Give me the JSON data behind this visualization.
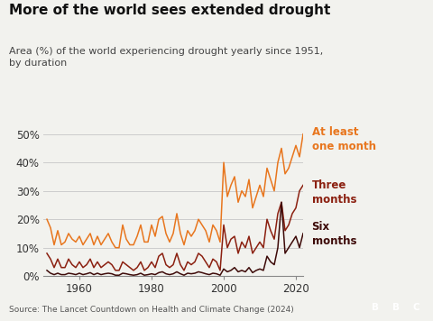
{
  "title": "More of the world sees extended drought",
  "subtitle": "Area (%) of the world experiencing drought yearly since 1951,\nby duration",
  "source": "Source: The Lancet Countdown on Health and Climate Change (2024)",
  "colors": {
    "one_month": "#E8761E",
    "three_months": "#8B2010",
    "six_months": "#3D0A08"
  },
  "years": [
    1951,
    1952,
    1953,
    1954,
    1955,
    1956,
    1957,
    1958,
    1959,
    1960,
    1961,
    1962,
    1963,
    1964,
    1965,
    1966,
    1967,
    1968,
    1969,
    1970,
    1971,
    1972,
    1973,
    1974,
    1975,
    1976,
    1977,
    1978,
    1979,
    1980,
    1981,
    1982,
    1983,
    1984,
    1985,
    1986,
    1987,
    1988,
    1989,
    1990,
    1991,
    1992,
    1993,
    1994,
    1995,
    1996,
    1997,
    1998,
    1999,
    2000,
    2001,
    2002,
    2003,
    2004,
    2005,
    2006,
    2007,
    2008,
    2009,
    2010,
    2011,
    2012,
    2013,
    2014,
    2015,
    2016,
    2017,
    2018,
    2019,
    2020,
    2021,
    2022
  ],
  "one_month": [
    20,
    17,
    11,
    16,
    11,
    12,
    15,
    13,
    12,
    14,
    11,
    13,
    15,
    11,
    14,
    11,
    13,
    15,
    12,
    10,
    10,
    18,
    13,
    11,
    11,
    14,
    18,
    12,
    12,
    18,
    14,
    20,
    21,
    15,
    12,
    15,
    22,
    15,
    11,
    16,
    14,
    16,
    20,
    18,
    16,
    12,
    18,
    16,
    12,
    40,
    28,
    32,
    35,
    26,
    30,
    28,
    34,
    24,
    28,
    32,
    28,
    38,
    34,
    30,
    40,
    45,
    36,
    38,
    42,
    46,
    42,
    50
  ],
  "three_months": [
    8,
    6,
    3,
    6,
    3,
    3,
    6,
    4,
    3,
    5,
    3,
    4,
    6,
    3,
    5,
    3,
    4,
    5,
    4,
    2,
    2,
    5,
    4,
    3,
    2,
    3,
    5,
    2,
    3,
    5,
    3,
    7,
    8,
    4,
    3,
    4,
    8,
    4,
    2,
    5,
    4,
    5,
    8,
    7,
    5,
    3,
    6,
    5,
    2,
    18,
    10,
    13,
    14,
    8,
    12,
    10,
    14,
    8,
    10,
    12,
    10,
    20,
    16,
    13,
    22,
    26,
    16,
    18,
    22,
    24,
    30,
    32
  ],
  "six_months": [
    2,
    1,
    0.5,
    1,
    0.5,
    0.5,
    1,
    0.8,
    0.5,
    1,
    0.5,
    0.8,
    1.2,
    0.5,
    1,
    0.5,
    0.8,
    1,
    0.8,
    0.3,
    0.3,
    1,
    0.8,
    0.5,
    0.3,
    0.5,
    1,
    0.3,
    0.5,
    0.8,
    0.5,
    1.2,
    1.5,
    0.8,
    0.5,
    0.8,
    1.5,
    0.8,
    0.3,
    1,
    0.8,
    1,
    1.5,
    1.2,
    0.8,
    0.5,
    1,
    0.8,
    0.3,
    2.5,
    1.5,
    2,
    3,
    1.5,
    2,
    1.5,
    3,
    1.2,
    2,
    2.5,
    2,
    7,
    5,
    4,
    10,
    26,
    8,
    10,
    12,
    14,
    10,
    15
  ],
  "xlim_min": 1950,
  "xlim_max": 2022,
  "ylim": [
    0,
    52
  ],
  "yticks": [
    0,
    10,
    20,
    30,
    40,
    50
  ],
  "ytick_labels": [
    "0%",
    "10%",
    "20%",
    "30%",
    "40%",
    "50%"
  ],
  "xticks": [
    1960,
    1980,
    2000,
    2020
  ],
  "bg_color": "#F2F2EE",
  "label_one_month": "At least\none month",
  "label_three_months": "Three\nmonths",
  "label_six_months": "Six\nmonths"
}
